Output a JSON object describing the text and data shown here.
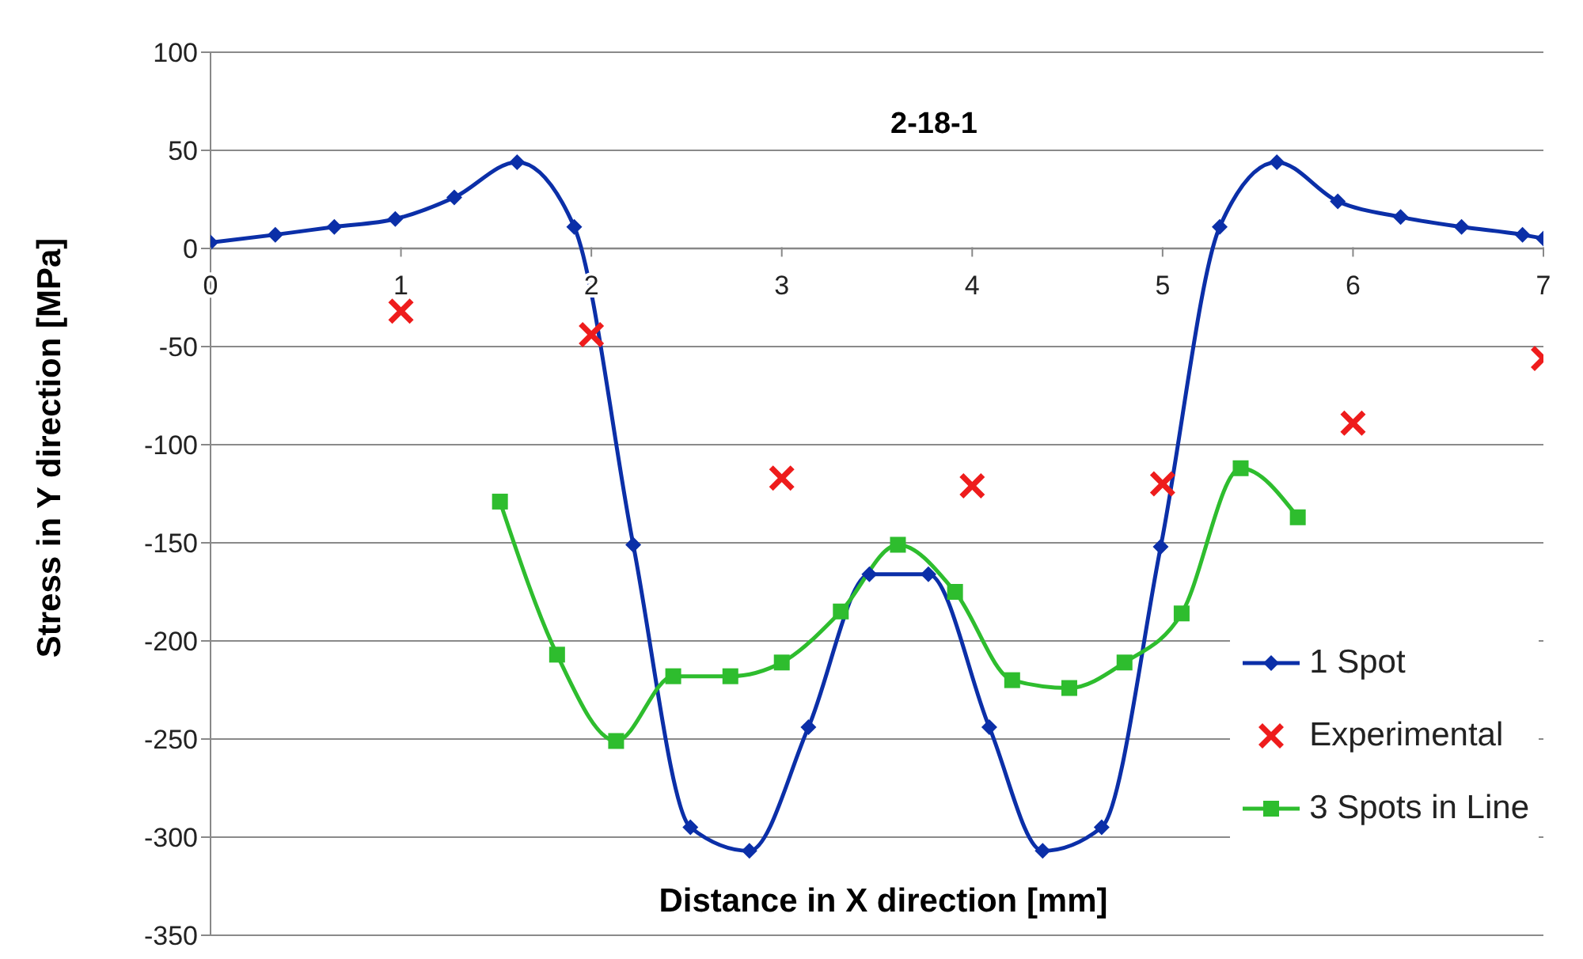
{
  "chart_data": {
    "type": "line",
    "title": "2-18-1",
    "xlabel": "Distance in X direction [mm]",
    "ylabel": "Stress in Y direction [MPa]",
    "xlim": [
      0,
      7
    ],
    "xticks": [
      0,
      1,
      2,
      3,
      4,
      5,
      6,
      7
    ],
    "ylim": [
      -350,
      100
    ],
    "yticks": [
      -350,
      -300,
      -250,
      -200,
      -150,
      -100,
      -50,
      0,
      50,
      100
    ],
    "grid": "y",
    "legend": "bottom right",
    "series": [
      {
        "name": "1 Spot",
        "marker": "diamond",
        "color": "#0b2fa8",
        "x": [
          0,
          0.34,
          0.65,
          0.97,
          1.28,
          1.61,
          1.91,
          2.22,
          2.52,
          2.83,
          3.14,
          3.46,
          3.77,
          4.09,
          4.37,
          4.68,
          4.99,
          5.3,
          5.6,
          5.92,
          6.25,
          6.57,
          6.89,
          7
        ],
        "values": [
          3,
          7,
          11,
          15,
          26,
          44,
          11,
          -151,
          -295,
          -307,
          -244,
          -166,
          -166,
          -244,
          -307,
          -295,
          -152,
          11,
          44,
          24,
          16,
          11,
          7,
          5
        ]
      },
      {
        "name": "Experimental",
        "type": "scatter",
        "marker": "cross",
        "color": "#ee1c1c",
        "x": [
          1,
          2,
          3,
          4,
          5,
          6,
          7
        ],
        "values": [
          -32,
          -44,
          -117,
          -121,
          -120,
          -89,
          -56
        ]
      },
      {
        "name": "3 Spots in Line",
        "marker": "square",
        "color": "#2ebd2e",
        "x": [
          1.52,
          1.82,
          2.13,
          2.43,
          2.73,
          3.0,
          3.31,
          3.61,
          3.91,
          4.21,
          4.51,
          4.8,
          5.1,
          5.41,
          5.71
        ],
        "values": [
          -129,
          -207,
          -251,
          -218,
          -218,
          -211,
          -185,
          -151,
          -175,
          -220,
          -224,
          -211,
          -186,
          -112,
          -137
        ]
      }
    ]
  }
}
